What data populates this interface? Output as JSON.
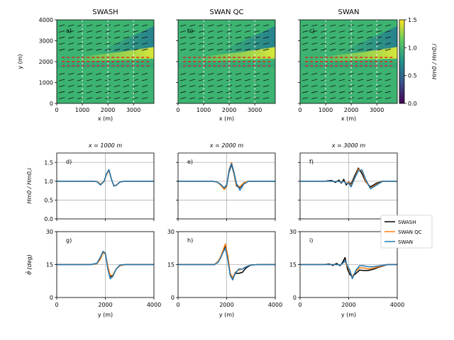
{
  "colors": {
    "swash": "#000000",
    "swan_qc": "#ff7f0e",
    "swan": "#1f77b4",
    "grid": "#b0b0b0",
    "field_base": "#3cb371",
    "field_teal": "#2a8a8a",
    "field_yellow": "#d9e83a",
    "field_lime": "#8fd14f",
    "transect": "#ffffff",
    "red_arrow": "#e31a1c"
  },
  "chart_data": [
    {
      "type": "heatmap",
      "panel": "a)",
      "title": "SWASH",
      "xlabel": "x (m)",
      "ylabel": "y (m)",
      "xlim": [
        0,
        3800
      ],
      "ylim": [
        0,
        4000
      ],
      "xticks": [
        "0",
        "1000",
        "2000",
        "3000"
      ],
      "yticks": [
        "0",
        "1000",
        "2000",
        "3000",
        "4000"
      ],
      "transects_x": [
        1000,
        2000,
        3000
      ]
    },
    {
      "type": "heatmap",
      "panel": "b)",
      "title": "SWAN QC",
      "xlabel": "x (m)",
      "ylabel": "",
      "xlim": [
        0,
        3800
      ],
      "ylim": [
        0,
        4000
      ],
      "xticks": [
        "0",
        "1000",
        "2000",
        "3000"
      ],
      "yticks": [],
      "transects_x": [
        1000,
        2000,
        3000
      ]
    },
    {
      "type": "heatmap",
      "panel": "c)",
      "title": "SWAN",
      "xlabel": "x (m)",
      "ylabel": "",
      "xlim": [
        0,
        3800
      ],
      "ylim": [
        0,
        4000
      ],
      "xticks": [
        "0",
        "1000",
        "2000",
        "3000"
      ],
      "yticks": [],
      "transects_x": [
        1000,
        2000,
        3000
      ]
    },
    {
      "type": "line",
      "panel": "d)",
      "title": "x = 1000 m",
      "ylabel": "Hm0 / Hm0,i",
      "xlim": [
        0,
        4000
      ],
      "ylim": [
        0,
        1.75
      ],
      "yticks": [
        "0.0",
        "0.5",
        "1.0",
        "1.5"
      ],
      "series": [
        {
          "name": "SWASH",
          "x": [
            0,
            1500,
            1650,
            1800,
            1950,
            2050,
            2150,
            2250,
            2350,
            2450,
            2600,
            2800,
            3000,
            4000
          ],
          "values": [
            1.0,
            1.0,
            0.99,
            0.92,
            1.0,
            1.2,
            1.3,
            1.05,
            0.88,
            0.9,
            0.98,
            1.0,
            1.0,
            1.0
          ]
        },
        {
          "name": "SWAN QC",
          "x": [
            0,
            1500,
            1650,
            1800,
            1950,
            2050,
            2150,
            2250,
            2350,
            2450,
            2600,
            2800,
            3000,
            4000
          ],
          "values": [
            1.0,
            1.0,
            0.99,
            0.92,
            1.0,
            1.18,
            1.28,
            1.05,
            0.88,
            0.9,
            0.98,
            1.0,
            1.0,
            1.0
          ]
        },
        {
          "name": "SWAN",
          "x": [
            0,
            1500,
            1650,
            1800,
            1950,
            2050,
            2150,
            2250,
            2350,
            2450,
            2600,
            2800,
            3000,
            4000
          ],
          "values": [
            1.0,
            1.0,
            0.99,
            0.9,
            1.0,
            1.2,
            1.31,
            1.06,
            0.87,
            0.89,
            0.98,
            1.0,
            1.0,
            1.0
          ]
        }
      ]
    },
    {
      "type": "line",
      "panel": "e)",
      "title": "x = 2000 m",
      "ylabel": "",
      "xlim": [
        0,
        4000
      ],
      "ylim": [
        0,
        1.75
      ],
      "yticks": [],
      "series": [
        {
          "name": "SWASH",
          "x": [
            0,
            1400,
            1600,
            1750,
            1900,
            2000,
            2100,
            2200,
            2300,
            2400,
            2550,
            2700,
            2900,
            3200,
            4000
          ],
          "values": [
            1.0,
            1.0,
            0.98,
            0.92,
            0.82,
            0.9,
            1.25,
            1.45,
            1.2,
            0.88,
            0.83,
            0.95,
            1.0,
            1.0,
            1.0
          ]
        },
        {
          "name": "SWAN QC",
          "x": [
            0,
            1400,
            1600,
            1750,
            1900,
            2000,
            2100,
            2200,
            2300,
            2400,
            2550,
            2700,
            2900,
            3200,
            4000
          ],
          "values": [
            1.0,
            1.0,
            0.98,
            0.9,
            0.78,
            0.85,
            1.3,
            1.5,
            1.22,
            0.9,
            0.85,
            0.96,
            1.0,
            1.0,
            1.0
          ]
        },
        {
          "name": "SWAN",
          "x": [
            0,
            1400,
            1600,
            1750,
            1900,
            2000,
            2100,
            2200,
            2300,
            2400,
            2550,
            2700,
            2900,
            3200,
            4000
          ],
          "values": [
            1.0,
            1.0,
            0.98,
            0.92,
            0.82,
            0.88,
            1.28,
            1.47,
            1.25,
            0.95,
            0.76,
            0.92,
            1.0,
            1.0,
            1.0
          ]
        }
      ]
    },
    {
      "type": "line",
      "panel": "f)",
      "title": "x = 3000 m",
      "ylabel": "",
      "xlim": [
        0,
        4000
      ],
      "ylim": [
        0,
        1.75
      ],
      "yticks": [],
      "series": [
        {
          "name": "SWASH",
          "x": [
            0,
            1000,
            1300,
            1450,
            1600,
            1700,
            1800,
            1900,
            2000,
            2100,
            2250,
            2400,
            2550,
            2700,
            2900,
            3150,
            3400,
            4000
          ],
          "values": [
            1.0,
            1.0,
            1.02,
            0.97,
            1.03,
            0.95,
            1.05,
            0.9,
            0.98,
            0.92,
            1.15,
            1.35,
            1.2,
            0.98,
            0.85,
            0.95,
            1.0,
            1.0
          ]
        },
        {
          "name": "SWAN QC",
          "x": [
            0,
            1000,
            1300,
            1450,
            1600,
            1700,
            1800,
            1900,
            2000,
            2100,
            2250,
            2400,
            2550,
            2700,
            2900,
            3150,
            3400,
            4000
          ],
          "values": [
            1.0,
            1.0,
            1.0,
            0.99,
            1.0,
            0.98,
            1.0,
            0.95,
            0.97,
            0.88,
            1.1,
            1.32,
            1.28,
            1.0,
            0.82,
            0.92,
            1.0,
            1.0
          ]
        },
        {
          "name": "SWAN",
          "x": [
            0,
            1000,
            1300,
            1450,
            1600,
            1700,
            1800,
            1900,
            2000,
            2100,
            2250,
            2400,
            2550,
            2700,
            2900,
            3150,
            3400,
            4000
          ],
          "values": [
            1.0,
            1.0,
            1.0,
            0.99,
            1.0,
            0.97,
            1.0,
            0.93,
            0.95,
            0.85,
            1.08,
            1.28,
            1.3,
            1.05,
            0.8,
            0.9,
            1.0,
            1.0
          ]
        }
      ]
    },
    {
      "type": "line",
      "panel": "g)",
      "title": "",
      "xlabel": "y (m)",
      "ylabel": "θ̄ (deg)",
      "xlim": [
        0,
        4000
      ],
      "ylim": [
        0,
        30
      ],
      "xticks": [
        "0",
        "2000",
        "4000"
      ],
      "yticks": [
        "0",
        "15",
        "30"
      ],
      "series": [
        {
          "name": "SWASH",
          "x": [
            0,
            1400,
            1650,
            1800,
            1900,
            2000,
            2100,
            2200,
            2300,
            2450,
            2600,
            2800,
            3000,
            4000
          ],
          "values": [
            15,
            15,
            15.5,
            18,
            20.5,
            20,
            14,
            9.5,
            10,
            13,
            14.5,
            15,
            15,
            15
          ]
        },
        {
          "name": "SWAN QC",
          "x": [
            0,
            1400,
            1650,
            1800,
            1900,
            2000,
            2100,
            2200,
            2300,
            2450,
            2600,
            2800,
            3000,
            4000
          ],
          "values": [
            15,
            15,
            15.3,
            17.5,
            20.3,
            19.8,
            14.5,
            10,
            10.2,
            13,
            14.5,
            15,
            15,
            15
          ]
        },
        {
          "name": "SWAN",
          "x": [
            0,
            1400,
            1650,
            1800,
            1900,
            2000,
            2100,
            2200,
            2300,
            2450,
            2600,
            2800,
            3000,
            4000
          ],
          "values": [
            15,
            15,
            15.5,
            18.5,
            21,
            20.3,
            13,
            8.5,
            9.5,
            13,
            14.8,
            15,
            15,
            15
          ]
        }
      ]
    },
    {
      "type": "line",
      "panel": "h)",
      "title": "",
      "xlabel": "y (m)",
      "ylabel": "",
      "xlim": [
        0,
        4000
      ],
      "ylim": [
        0,
        30
      ],
      "xticks": [
        "0",
        "2000",
        "4000"
      ],
      "yticks": [
        "0",
        "15",
        "30"
      ],
      "series": [
        {
          "name": "SWASH",
          "x": [
            0,
            1300,
            1500,
            1650,
            1750,
            1850,
            1950,
            2050,
            2150,
            2250,
            2350,
            2500,
            2650,
            2800,
            3000,
            3300,
            4000
          ],
          "values": [
            15,
            15,
            15,
            16.5,
            18,
            21,
            23.5,
            18,
            10,
            8.5,
            11,
            11,
            11.5,
            13.5,
            14.8,
            15,
            15
          ]
        },
        {
          "name": "SWAN QC",
          "x": [
            0,
            1300,
            1500,
            1650,
            1750,
            1850,
            1950,
            2050,
            2150,
            2250,
            2350,
            2500,
            2650,
            2800,
            3000,
            3300,
            4000
          ],
          "values": [
            15,
            15,
            15,
            16.5,
            18.5,
            21.5,
            24.5,
            19,
            11,
            9,
            11.5,
            12.5,
            13,
            14,
            14.8,
            15,
            15
          ]
        },
        {
          "name": "SWAN",
          "x": [
            0,
            1300,
            1500,
            1650,
            1750,
            1850,
            1950,
            2050,
            2150,
            2250,
            2350,
            2500,
            2650,
            2800,
            3000,
            3300,
            4000
          ],
          "values": [
            15,
            15,
            15,
            16,
            18,
            20.5,
            22.5,
            17,
            10,
            8,
            11,
            13,
            13,
            14,
            14.8,
            15,
            15
          ]
        }
      ]
    },
    {
      "type": "line",
      "panel": "i)",
      "title": "",
      "xlabel": "y (m)",
      "ylabel": "",
      "xlim": [
        0,
        4000
      ],
      "ylim": [
        0,
        30
      ],
      "xticks": [
        "0",
        "2000",
        "4000"
      ],
      "yticks": [
        "0",
        "15",
        "30"
      ],
      "series": [
        {
          "name": "SWASH",
          "x": [
            0,
            1000,
            1200,
            1350,
            1500,
            1650,
            1750,
            1850,
            1950,
            2050,
            2150,
            2300,
            2450,
            2600,
            2800,
            3000,
            3300,
            3600,
            4000
          ],
          "values": [
            15,
            15,
            15.3,
            14.6,
            15.5,
            14.5,
            16,
            18.2,
            13,
            10.5,
            9.5,
            11,
            12.5,
            12.3,
            12.3,
            12.8,
            14,
            15,
            15
          ]
        },
        {
          "name": "SWAN QC",
          "x": [
            0,
            1000,
            1200,
            1350,
            1500,
            1650,
            1750,
            1850,
            1950,
            2050,
            2150,
            2300,
            2450,
            2600,
            2800,
            3000,
            3300,
            3600,
            4000
          ],
          "values": [
            15,
            15,
            15,
            15,
            15,
            14.8,
            15.5,
            16.5,
            14,
            12,
            9.5,
            12,
            13.5,
            13.5,
            13,
            13.3,
            14.2,
            15,
            15
          ]
        },
        {
          "name": "SWAN",
          "x": [
            0,
            1000,
            1200,
            1350,
            1500,
            1650,
            1750,
            1850,
            1950,
            2050,
            2150,
            2300,
            2450,
            2600,
            2800,
            3000,
            3300,
            3600,
            4000
          ],
          "values": [
            15,
            15,
            15,
            15,
            15,
            14.8,
            15.5,
            16.8,
            14.5,
            12.5,
            8.5,
            12.5,
            14.5,
            14.5,
            14,
            14,
            14.5,
            15,
            15
          ]
        }
      ]
    }
  ],
  "colorbar": {
    "ticks": [
      "0.0",
      "0.5",
      "1.0",
      "1.5"
    ],
    "range": [
      0,
      1.5
    ],
    "label": "Hm0 / Hm0,i"
  },
  "legend": {
    "position": "right",
    "entries": [
      "SWASH",
      "SWAN QC",
      "SWAN"
    ]
  }
}
